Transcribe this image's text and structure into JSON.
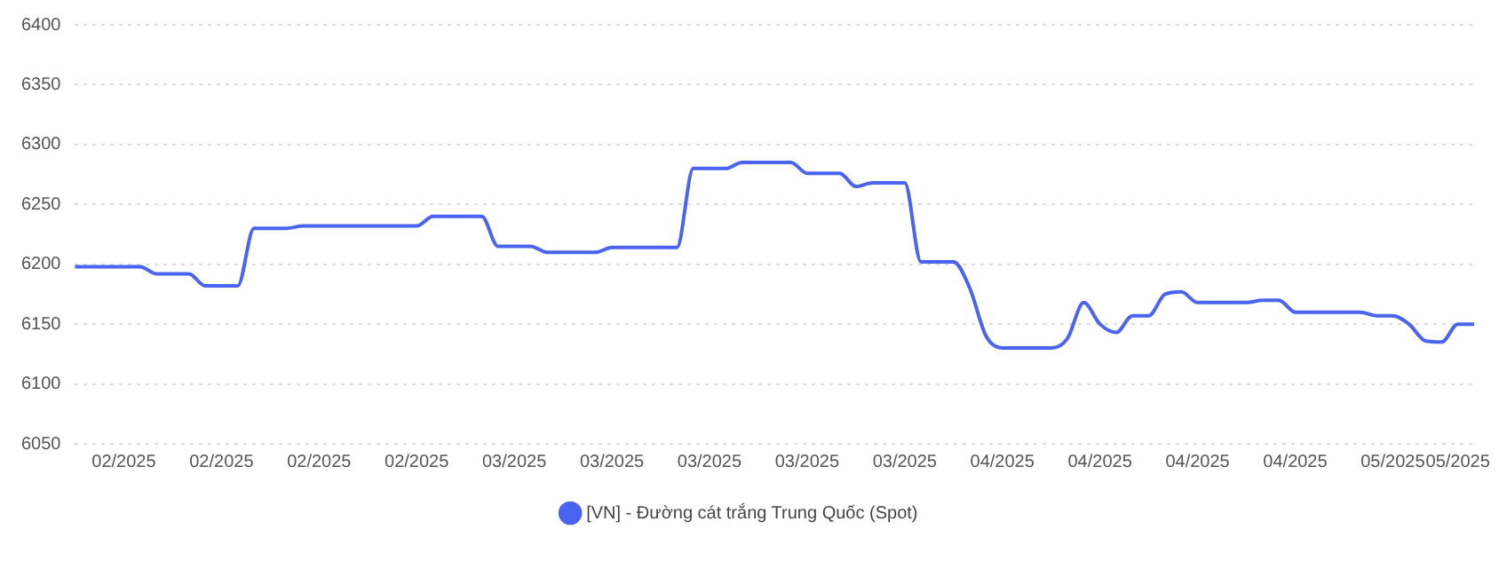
{
  "chart_data": {
    "type": "line",
    "categories": [
      null,
      null,
      null,
      "02/2025",
      null,
      null,
      null,
      null,
      null,
      "02/2025",
      null,
      null,
      null,
      null,
      null,
      "02/2025",
      null,
      null,
      null,
      null,
      null,
      "02/2025",
      null,
      null,
      null,
      null,
      null,
      "03/2025",
      null,
      null,
      null,
      null,
      null,
      "03/2025",
      null,
      null,
      null,
      null,
      null,
      "03/2025",
      null,
      null,
      null,
      null,
      null,
      "03/2025",
      null,
      null,
      null,
      null,
      null,
      "03/2025",
      null,
      null,
      null,
      null,
      null,
      "04/2025",
      null,
      null,
      null,
      null,
      null,
      "04/2025",
      null,
      null,
      null,
      null,
      null,
      "04/2025",
      null,
      null,
      null,
      null,
      null,
      "04/2025",
      null,
      null,
      null,
      null,
      null,
      "05/2025",
      null,
      null,
      null,
      "05/2025",
      null
    ],
    "series": [
      {
        "name": "[VN] - Đường cát trắng Trung Quốc (Spot)",
        "color": "#4a63f0",
        "values": [
          6198,
          6198,
          6198,
          6198,
          6198,
          6192,
          6192,
          6192,
          6182,
          6182,
          6182,
          6230,
          6230,
          6230,
          6232,
          6232,
          6232,
          6232,
          6232,
          6232,
          6232,
          6232,
          6240,
          6240,
          6240,
          6240,
          6215,
          6215,
          6215,
          6210,
          6210,
          6210,
          6210,
          6214,
          6214,
          6214,
          6214,
          6214,
          6280,
          6280,
          6280,
          6285,
          6285,
          6285,
          6285,
          6276,
          6276,
          6276,
          6265,
          6268,
          6268,
          6268,
          6202,
          6202,
          6202,
          6180,
          6140,
          6130,
          6130,
          6130,
          6130,
          6138,
          6168,
          6150,
          6143,
          6157,
          6157,
          6175,
          6177,
          6168,
          6168,
          6168,
          6168,
          6170,
          6170,
          6160,
          6160,
          6160,
          6160,
          6160,
          6157,
          6157,
          6150,
          6136,
          6135,
          6150,
          6150
        ]
      }
    ],
    "ylim": [
      6050,
      6400
    ],
    "yticks": [
      6050,
      6100,
      6150,
      6200,
      6250,
      6300,
      6350,
      6400
    ],
    "grid": "y",
    "legend": "bottom",
    "marker": "none",
    "line_style": "solid"
  }
}
